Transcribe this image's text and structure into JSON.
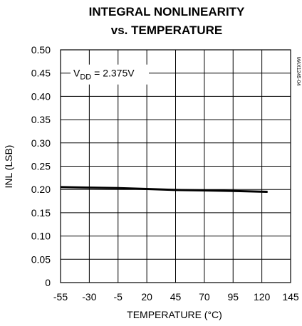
{
  "chart_data": {
    "type": "line",
    "title_line1": "INTEGRAL NONLINEARITY",
    "title_line2": "vs. TEMPERATURE",
    "xlabel": "TEMPERATURE (°C)",
    "ylabel": "INL (LSB)",
    "x_ticks": [
      "-55",
      "-30",
      "-5",
      "20",
      "45",
      "70",
      "95",
      "120",
      "145"
    ],
    "y_ticks": [
      "0",
      "0.05",
      "0.10",
      "0.15",
      "0.20",
      "0.25",
      "0.30",
      "0.35",
      "0.40",
      "0.45",
      "0.50"
    ],
    "xlim": [
      -55,
      145
    ],
    "ylim": [
      0,
      0.5
    ],
    "grid": true,
    "annotation": {
      "prefix": "V",
      "subscript": "DD",
      "suffix": " = 2.375V"
    },
    "part_number": "MAX1245-04",
    "series": [
      {
        "x": [
          -55,
          -30,
          -5,
          20,
          45,
          70,
          95,
          125
        ],
        "y": [
          0.205,
          0.204,
          0.203,
          0.201,
          0.199,
          0.198,
          0.197,
          0.195
        ]
      }
    ]
  }
}
